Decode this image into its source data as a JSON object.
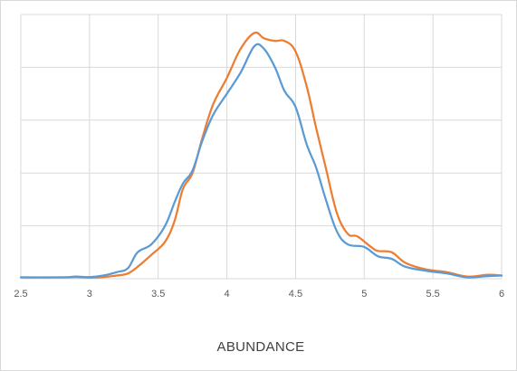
{
  "chart_data": {
    "type": "line",
    "title": "",
    "xlabel": "ABUNDANCE",
    "ylabel": "",
    "xlim": [
      2.5,
      6
    ],
    "ylim": [
      0,
      1
    ],
    "x_ticks": [
      "2.5",
      "3",
      "3.5",
      "4",
      "4.5",
      "5",
      "5.5",
      "6"
    ],
    "y_tick_labels_shown": false,
    "grid": true,
    "legend": "none",
    "series": [
      {
        "color": "#5b9bd5",
        "points": [
          [
            2.5,
            0.005
          ],
          [
            2.8,
            0.005
          ],
          [
            2.9,
            0.008
          ],
          [
            3.0,
            0.006
          ],
          [
            3.1,
            0.012
          ],
          [
            3.2,
            0.025
          ],
          [
            3.28,
            0.04
          ],
          [
            3.35,
            0.1
          ],
          [
            3.45,
            0.13
          ],
          [
            3.55,
            0.2
          ],
          [
            3.62,
            0.29
          ],
          [
            3.68,
            0.36
          ],
          [
            3.75,
            0.41
          ],
          [
            3.82,
            0.52
          ],
          [
            3.9,
            0.62
          ],
          [
            4.0,
            0.7
          ],
          [
            4.1,
            0.78
          ],
          [
            4.2,
            0.88
          ],
          [
            4.27,
            0.87
          ],
          [
            4.35,
            0.8
          ],
          [
            4.42,
            0.71
          ],
          [
            4.5,
            0.65
          ],
          [
            4.58,
            0.51
          ],
          [
            4.65,
            0.42
          ],
          [
            4.72,
            0.3
          ],
          [
            4.8,
            0.18
          ],
          [
            4.88,
            0.13
          ],
          [
            5.0,
            0.12
          ],
          [
            5.1,
            0.085
          ],
          [
            5.2,
            0.075
          ],
          [
            5.3,
            0.045
          ],
          [
            5.45,
            0.03
          ],
          [
            5.6,
            0.02
          ],
          [
            5.75,
            0.005
          ],
          [
            5.9,
            0.01
          ],
          [
            6.0,
            0.012
          ]
        ]
      },
      {
        "color": "#ed7d31",
        "points": [
          [
            2.5,
            0.005
          ],
          [
            2.8,
            0.005
          ],
          [
            2.9,
            0.006
          ],
          [
            3.0,
            0.004
          ],
          [
            3.1,
            0.006
          ],
          [
            3.2,
            0.012
          ],
          [
            3.28,
            0.02
          ],
          [
            3.35,
            0.045
          ],
          [
            3.45,
            0.09
          ],
          [
            3.55,
            0.14
          ],
          [
            3.62,
            0.22
          ],
          [
            3.68,
            0.34
          ],
          [
            3.75,
            0.4
          ],
          [
            3.82,
            0.53
          ],
          [
            3.9,
            0.66
          ],
          [
            4.0,
            0.76
          ],
          [
            4.1,
            0.87
          ],
          [
            4.2,
            0.93
          ],
          [
            4.27,
            0.91
          ],
          [
            4.35,
            0.9
          ],
          [
            4.42,
            0.9
          ],
          [
            4.5,
            0.86
          ],
          [
            4.58,
            0.73
          ],
          [
            4.65,
            0.57
          ],
          [
            4.72,
            0.42
          ],
          [
            4.8,
            0.25
          ],
          [
            4.88,
            0.17
          ],
          [
            4.95,
            0.16
          ],
          [
            5.05,
            0.12
          ],
          [
            5.1,
            0.105
          ],
          [
            5.2,
            0.1
          ],
          [
            5.3,
            0.06
          ],
          [
            5.45,
            0.035
          ],
          [
            5.6,
            0.025
          ],
          [
            5.75,
            0.008
          ],
          [
            5.9,
            0.015
          ],
          [
            6.0,
            0.012
          ]
        ]
      }
    ]
  }
}
